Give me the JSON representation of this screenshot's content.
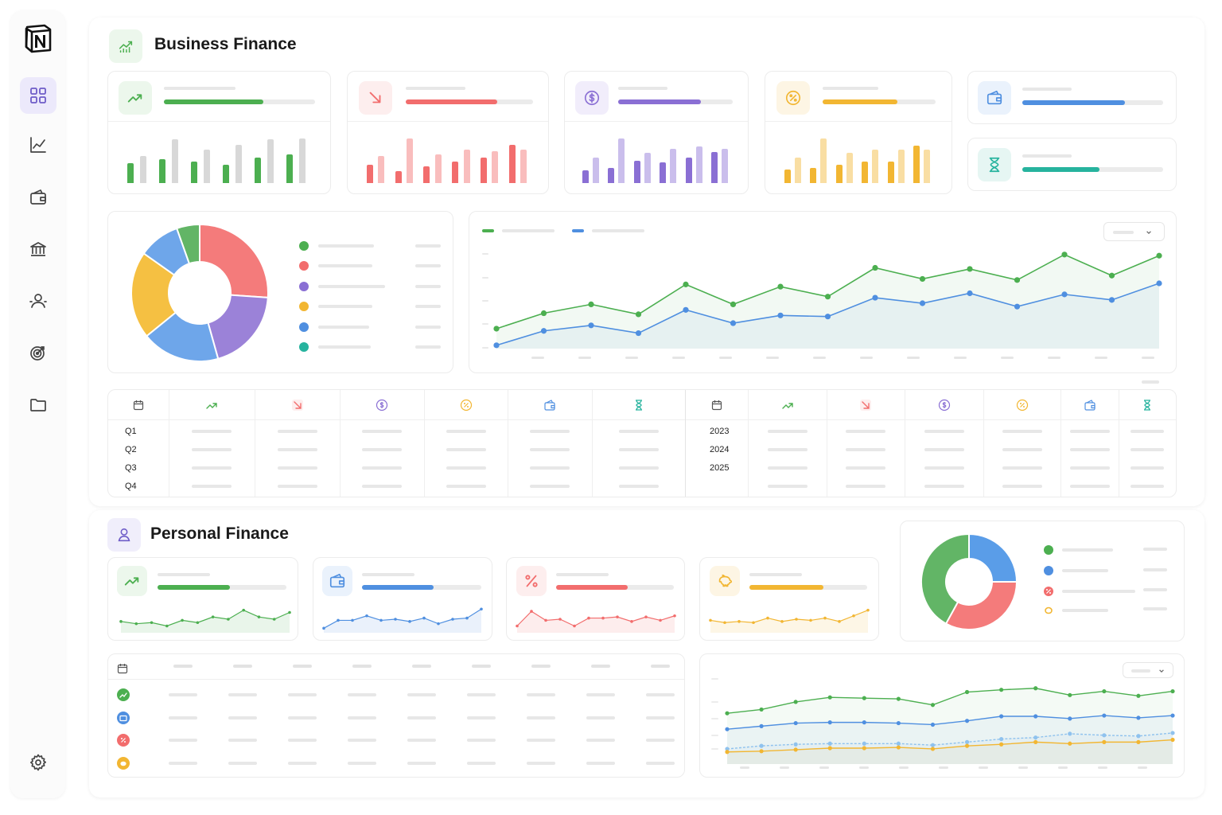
{
  "business": {
    "title": "Business Finance",
    "kpis": [
      {
        "icon": "trending-up-icon",
        "color": "#4caf50",
        "bg": "#ecf7ec",
        "progress": 0.66
      },
      {
        "icon": "trending-down-icon",
        "color": "#f26d6d",
        "bg": "#fdeeee",
        "progress": 0.72
      },
      {
        "icon": "dollar-icon",
        "color": "#8a6fd4",
        "bg": "#f1edfb",
        "progress": 0.72
      },
      {
        "icon": "percent-icon",
        "color": "#f2b632",
        "bg": "#fdf5e4",
        "progress": 0.66
      },
      {
        "icon": "wallet-icon",
        "color": "#4f8fe0",
        "bg": "#eaf2fc",
        "progress": 0.73
      },
      {
        "icon": "hourglass-icon",
        "color": "#26b39e",
        "bg": "#e6f6f3",
        "progress": 0.55
      }
    ],
    "table_left_rows": [
      "Q1",
      "Q2",
      "Q3",
      "Q4"
    ],
    "table_right_rows": [
      "2023",
      "2024",
      "2025"
    ]
  },
  "personal": {
    "title": "Personal Finance",
    "kpis": [
      {
        "icon": "trending-up-icon",
        "color": "#4caf50",
        "bg": "#ecf7ec",
        "progress": 0.56
      },
      {
        "icon": "wallet-icon",
        "color": "#4f8fe0",
        "bg": "#eaf2fc",
        "progress": 0.6
      },
      {
        "icon": "percent-icon",
        "color": "#f26d6d",
        "bg": "#fdeeee",
        "progress": 0.61
      },
      {
        "icon": "piggy-bank-icon",
        "color": "#f2b632",
        "bg": "#fdf5e4",
        "progress": 0.63
      }
    ]
  },
  "colors": {
    "green": "#4caf50",
    "red": "#f26d6d",
    "purple": "#8a6fd4",
    "yellow": "#f2b632",
    "blue": "#4f8fe0",
    "teal": "#26b39e",
    "sidebar_active": "#ece9fb"
  },
  "chart_data": [
    {
      "type": "bar",
      "series": [
        {
          "values": [
            24,
            32,
            28,
            52,
            26,
            40,
            22,
            46,
            30,
            52,
            34,
            53
          ]
        }
      ]
    },
    {
      "type": "bar",
      "series": [
        {
          "values": [
            22,
            32,
            14,
            53,
            20,
            34,
            26,
            40,
            30,
            38,
            46,
            40
          ]
        }
      ]
    },
    {
      "type": "bar",
      "series": [
        {
          "values": [
            15,
            30,
            18,
            53,
            27,
            36,
            25,
            41,
            30,
            44,
            37,
            41
          ]
        }
      ]
    },
    {
      "type": "bar",
      "series": [
        {
          "values": [
            16,
            30,
            18,
            53,
            22,
            36,
            26,
            40,
            26,
            40,
            45,
            40
          ]
        }
      ]
    },
    {
      "type": "pie",
      "values": [
        24,
        18,
        17,
        19,
        9,
        5
      ]
    },
    {
      "type": "area",
      "series": [
        {
          "values": [
            18,
            32,
            40,
            31,
            58,
            40,
            56,
            47,
            73,
            63,
            72,
            62,
            85,
            66,
            84
          ]
        },
        {
          "values": [
            3,
            16,
            21,
            14,
            35,
            23,
            30,
            29,
            46,
            41,
            50,
            38,
            49,
            44,
            59
          ]
        }
      ]
    },
    {
      "type": "pie",
      "values": [
        25,
        33,
        42
      ]
    },
    {
      "type": "line",
      "series": [
        {
          "values": [
            10,
            8,
            9,
            6,
            11,
            9,
            14,
            12,
            20,
            14,
            12,
            18
          ]
        }
      ]
    },
    {
      "type": "line",
      "series": [
        {
          "values": [
            4,
            11,
            11,
            15,
            11,
            12,
            10,
            13,
            8,
            12,
            13,
            21
          ]
        }
      ]
    },
    {
      "type": "line",
      "series": [
        {
          "values": [
            6,
            19,
            11,
            12,
            6,
            13,
            13,
            14,
            10,
            14,
            11,
            15
          ]
        }
      ]
    },
    {
      "type": "line",
      "series": [
        {
          "values": [
            11,
            9,
            10,
            9,
            13,
            10,
            12,
            11,
            13,
            10,
            15,
            20
          ]
        }
      ]
    },
    {
      "type": "area",
      "series": [
        {
          "values": [
            67,
            72,
            82,
            88,
            87,
            86,
            78,
            95,
            98,
            100,
            91,
            96,
            90,
            96
          ]
        },
        {
          "values": [
            46,
            50,
            54,
            55,
            55,
            54,
            52,
            57,
            63,
            63,
            60,
            64,
            61,
            64
          ]
        },
        {
          "values": [
            20,
            24,
            26,
            27,
            27,
            27,
            25,
            29,
            33,
            35,
            40,
            38,
            37,
            41
          ]
        },
        {
          "values": [
            16,
            17,
            19,
            21,
            21,
            22,
            20,
            24,
            26,
            29,
            27,
            29,
            29,
            32
          ]
        }
      ]
    }
  ]
}
